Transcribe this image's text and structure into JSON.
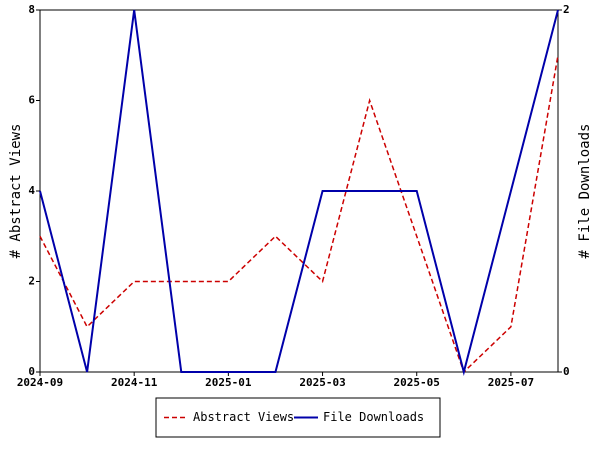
{
  "chart_data": {
    "type": "line",
    "categories": [
      "2024-09",
      null,
      "2024-11",
      null,
      "2025-01",
      null,
      "2025-03",
      null,
      "2025-05",
      null,
      "2025-07",
      null
    ],
    "y_label": "# Abstract Views",
    "y2_label": "# File Downloads",
    "ylim": [
      0,
      8
    ],
    "yticks": [
      0,
      2,
      4,
      6,
      8
    ],
    "y2lim": [
      0,
      2
    ],
    "y2ticks": [
      0,
      2
    ],
    "grid": false,
    "legend": "bottom",
    "series": [
      {
        "name": "Abstract Views",
        "color": "#cc0000",
        "dash": true,
        "values": [
          3,
          1,
          2,
          2,
          2,
          3,
          2,
          6,
          3,
          0,
          1,
          7
        ]
      },
      {
        "name": "File Downloads",
        "color": "#0000aa",
        "dash": false,
        "axis": "y2",
        "values": [
          1,
          0,
          2,
          0,
          0,
          0,
          1,
          1,
          1,
          0,
          1,
          2
        ]
      }
    ]
  }
}
